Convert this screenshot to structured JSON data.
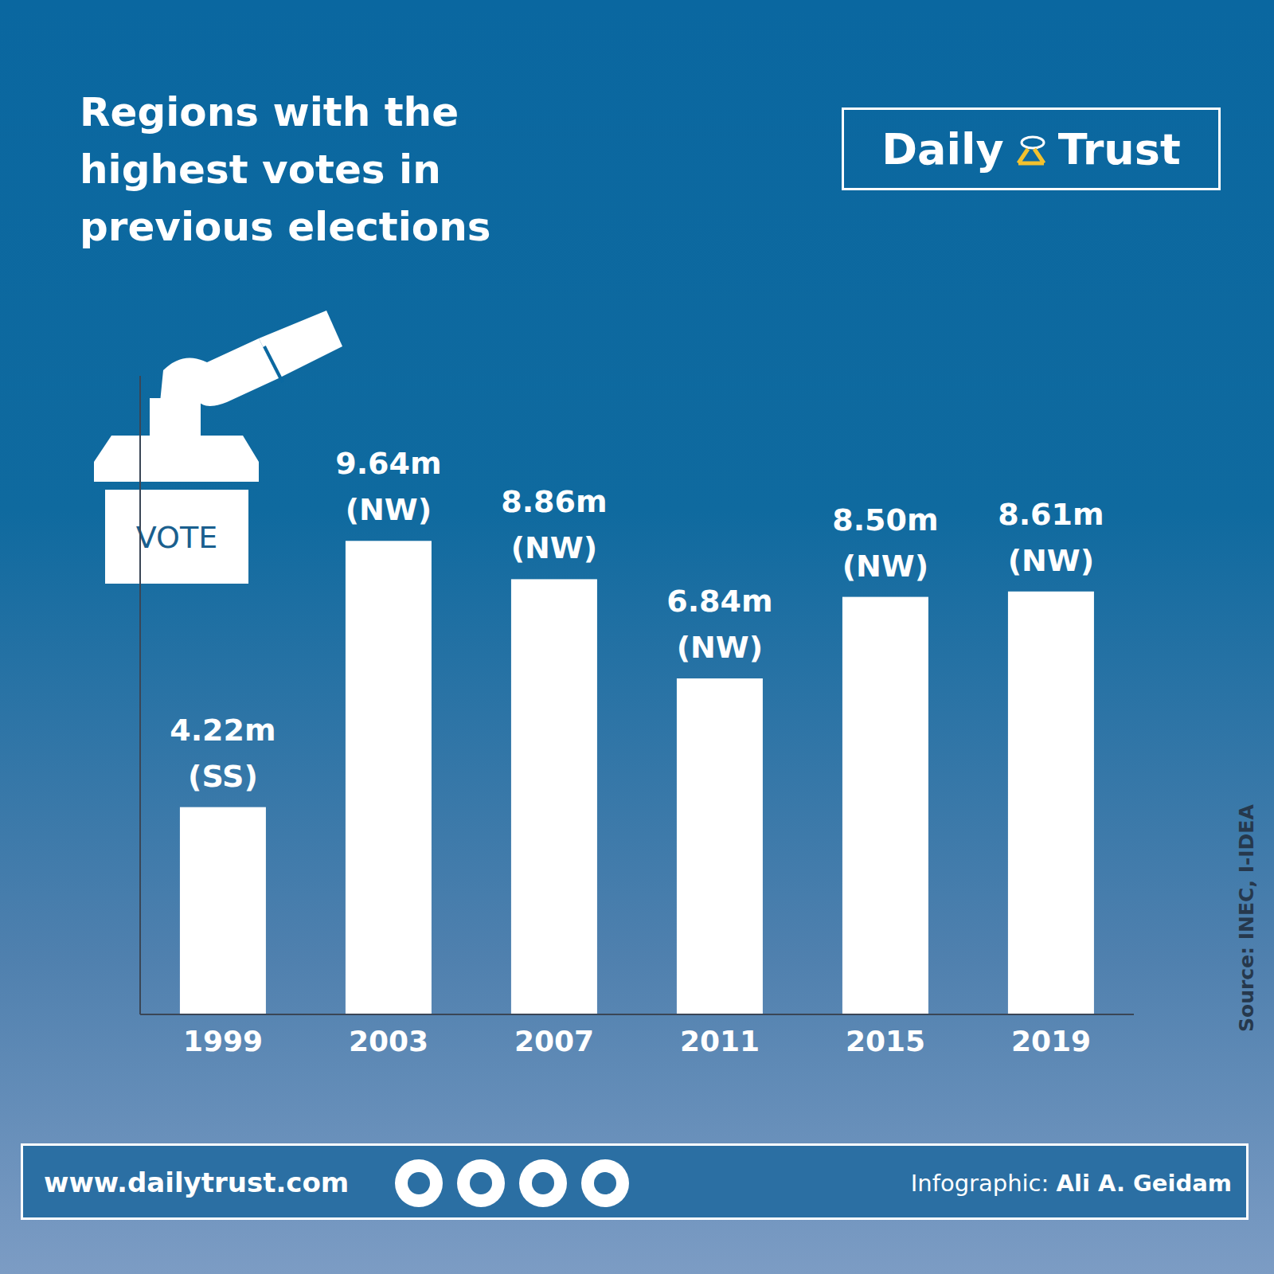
{
  "header": {
    "brand": "Daily Trust",
    "icon_text": "VOTE"
  },
  "chart_data": {
    "type": "bar",
    "title": "Regions with the highest votes in previous elections",
    "categories": [
      "1999",
      "2003",
      "2007",
      "2011",
      "2015",
      "2019"
    ],
    "values": [
      4.22,
      9.64,
      8.86,
      6.84,
      8.5,
      8.61
    ],
    "value_labels": [
      "4.22m",
      "9.64m",
      "8.86m",
      "6.84m",
      "8.50m",
      "8.61m"
    ],
    "regions": [
      "(SS)",
      "(NW)",
      "(NW)",
      "(NW)",
      "(NW)",
      "(NW)"
    ],
    "color": "#ffffff",
    "ylim": [
      0,
      13
    ],
    "data_labels": true,
    "tick_labels": "x",
    "grid": false,
    "source": "Source: INEC, I-IDEA"
  },
  "footer": {
    "website": "www.dailytrust.com",
    "credit_label": "Infographic:",
    "credit_name": "Ali A. Geidam"
  }
}
